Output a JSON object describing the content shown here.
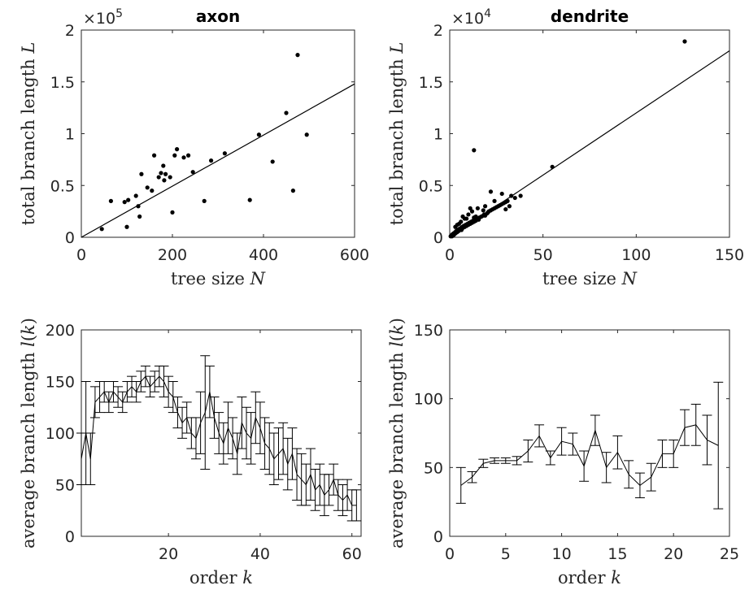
{
  "chart_data": [
    {
      "type": "scatter",
      "title": "axon",
      "xlabel": "tree size N",
      "ylabel": "total branch length L",
      "xlim": [
        0,
        600
      ],
      "ylim": [
        0,
        2
      ],
      "xticks": [
        0,
        200,
        400,
        600
      ],
      "yticks": [
        0,
        0.5,
        1,
        1.5,
        2
      ],
      "ytick_labels": [
        "0",
        "0.5",
        "1",
        "1.5",
        "2"
      ],
      "y_exponent": "×10^5",
      "fit_line": {
        "x": [
          0,
          600
        ],
        "y": [
          0,
          1.48
        ]
      },
      "series": [
        {
          "x": [
            45,
            65,
            95,
            100,
            103,
            120,
            125,
            128,
            132,
            145,
            155,
            160,
            170,
            175,
            180,
            182,
            185,
            195,
            200,
            205,
            210,
            225,
            235,
            245,
            270,
            285,
            315,
            370,
            390,
            420,
            450,
            465,
            475,
            495
          ],
          "y": [
            0.08,
            0.35,
            0.34,
            0.1,
            0.36,
            0.4,
            0.3,
            0.2,
            0.61,
            0.48,
            0.45,
            0.79,
            0.58,
            0.62,
            0.69,
            0.55,
            0.61,
            0.58,
            0.24,
            0.79,
            0.85,
            0.77,
            0.79,
            0.63,
            0.35,
            0.74,
            0.81,
            0.36,
            0.99,
            0.73,
            1.2,
            0.45,
            1.76,
            0.99
          ]
        }
      ]
    },
    {
      "type": "scatter",
      "title": "dendrite",
      "xlabel": "tree size N",
      "ylabel": "total branch length L",
      "xlim": [
        0,
        150
      ],
      "ylim": [
        0,
        2
      ],
      "xticks": [
        0,
        50,
        100,
        150
      ],
      "yticks": [
        0,
        0.5,
        1,
        1.5,
        2
      ],
      "ytick_labels": [
        "0",
        "0.5",
        "1",
        "1.5",
        "2"
      ],
      "y_exponent": "×10^4",
      "fit_line": {
        "x": [
          0,
          150
        ],
        "y": [
          0,
          1.8
        ]
      },
      "series": [
        {
          "x": [
            0.5,
            1,
            1.2,
            1.5,
            2,
            2.3,
            2.6,
            3,
            3.2,
            3.5,
            4,
            4.3,
            4.7,
            5,
            5.5,
            6,
            6.3,
            6.7,
            7,
            7.5,
            8,
            8.5,
            9,
            9.5,
            10,
            10.5,
            11,
            11.5,
            12,
            12.5,
            13,
            13.5,
            14,
            15,
            15.5,
            16,
            17,
            18,
            18.5,
            19,
            20,
            20.5,
            21,
            22,
            23,
            24,
            25,
            26,
            27,
            28,
            29,
            30,
            31,
            32,
            33,
            35,
            38,
            3,
            5,
            6,
            7,
            9,
            10,
            12,
            13,
            15,
            18,
            22,
            28,
            4,
            8,
            11,
            14,
            19,
            24,
            30,
            13,
            55,
            126
          ],
          "y": [
            0.01,
            0.02,
            0.01,
            0.03,
            0.02,
            0.04,
            0.03,
            0.05,
            0.04,
            0.06,
            0.05,
            0.07,
            0.06,
            0.08,
            0.07,
            0.09,
            0.07,
            0.1,
            0.09,
            0.11,
            0.1,
            0.12,
            0.11,
            0.13,
            0.12,
            0.14,
            0.13,
            0.15,
            0.14,
            0.16,
            0.15,
            0.17,
            0.16,
            0.18,
            0.17,
            0.19,
            0.2,
            0.21,
            0.22,
            0.21,
            0.23,
            0.24,
            0.25,
            0.26,
            0.27,
            0.28,
            0.29,
            0.3,
            0.31,
            0.32,
            0.33,
            0.34,
            0.35,
            0.3,
            0.4,
            0.38,
            0.4,
            0.1,
            0.13,
            0.15,
            0.2,
            0.18,
            0.22,
            0.25,
            0.19,
            0.28,
            0.26,
            0.44,
            0.42,
            0.12,
            0.18,
            0.28,
            0.2,
            0.3,
            0.35,
            0.27,
            0.84,
            0.68,
            1.89
          ]
        }
      ]
    },
    {
      "type": "line",
      "error_bars": true,
      "xlabel": "order k",
      "ylabel": "average branch length l(k)",
      "xlim": [
        1,
        62
      ],
      "ylim": [
        0,
        200
      ],
      "xticks": [
        20,
        40,
        60
      ],
      "yticks": [
        0,
        50,
        100,
        150,
        200
      ],
      "series": [
        {
          "x": [
            1,
            2,
            3,
            4,
            5,
            6,
            7,
            8,
            9,
            10,
            11,
            12,
            13,
            14,
            15,
            16,
            17,
            18,
            19,
            20,
            21,
            22,
            23,
            24,
            25,
            26,
            27,
            28,
            29,
            30,
            31,
            32,
            33,
            34,
            35,
            36,
            37,
            38,
            39,
            40,
            41,
            42,
            43,
            44,
            45,
            46,
            47,
            48,
            49,
            50,
            51,
            52,
            53,
            54,
            55,
            56,
            57,
            58,
            59,
            60,
            61
          ],
          "y": [
            75,
            100,
            75,
            130,
            135,
            140,
            130,
            140,
            135,
            130,
            140,
            145,
            140,
            150,
            155,
            145,
            150,
            155,
            150,
            140,
            135,
            120,
            110,
            115,
            100,
            95,
            110,
            120,
            140,
            115,
            100,
            90,
            105,
            95,
            80,
            110,
            100,
            95,
            115,
            105,
            90,
            85,
            75,
            80,
            85,
            70,
            80,
            60,
            55,
            50,
            60,
            45,
            50,
            40,
            45,
            55,
            40,
            35,
            40,
            30,
            30
          ],
          "err": [
            25,
            50,
            25,
            15,
            15,
            10,
            10,
            10,
            10,
            10,
            10,
            10,
            10,
            10,
            10,
            10,
            10,
            10,
            15,
            15,
            15,
            15,
            15,
            15,
            15,
            20,
            30,
            55,
            25,
            20,
            20,
            20,
            25,
            20,
            20,
            25,
            25,
            25,
            25,
            25,
            25,
            25,
            25,
            25,
            25,
            25,
            25,
            25,
            25,
            20,
            25,
            20,
            20,
            20,
            15,
            15,
            15,
            15,
            15,
            15,
            15
          ]
        }
      ]
    },
    {
      "type": "line",
      "error_bars": true,
      "xlabel": "order k",
      "ylabel": "average branch length l(k)",
      "xlim": [
        0,
        25
      ],
      "ylim": [
        0,
        150
      ],
      "xticks": [
        0,
        5,
        10,
        15,
        20,
        25
      ],
      "yticks": [
        0,
        50,
        100,
        150
      ],
      "series": [
        {
          "x": [
            1,
            2,
            3,
            4,
            5,
            6,
            7,
            8,
            9,
            10,
            11,
            12,
            13,
            14,
            15,
            16,
            17,
            18,
            19,
            20,
            21,
            22,
            23,
            24
          ],
          "y": [
            37,
            43,
            53,
            55,
            55,
            55,
            62,
            73,
            57,
            69,
            67,
            51,
            77,
            50,
            61,
            45,
            37,
            43,
            60,
            60,
            79,
            81,
            70,
            66
          ],
          "err": [
            13,
            4,
            3,
            2,
            2,
            3,
            8,
            8,
            5,
            10,
            8,
            11,
            11,
            11,
            12,
            10,
            9,
            10,
            10,
            10,
            13,
            15,
            18,
            46
          ]
        }
      ]
    }
  ]
}
